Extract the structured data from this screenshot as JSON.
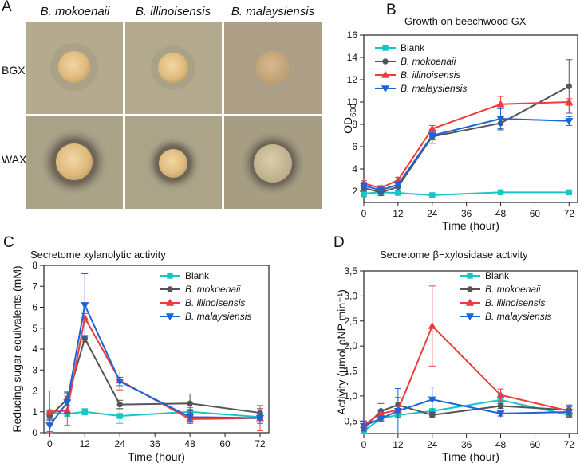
{
  "panels": {
    "A": {
      "letter": "A",
      "columns": [
        "B. mokoenaii",
        "B. illinoisensis",
        "B. malaysiensis"
      ],
      "rows": [
        "BGX",
        "WAX"
      ]
    }
  },
  "colors": {
    "Blank": "#16c6c6",
    "B. mokoenaii": "#555555",
    "B. illinoisensis": "#ef3b3b",
    "B. malaysiensis": "#1f63d9"
  },
  "chart_data": [
    {
      "letter": "B",
      "type": "line",
      "title": "Growth on beechwood GX",
      "xlabel": "Time (hour)",
      "ylabel": "OD",
      "ylabel_sub": "600",
      "x": [
        0,
        6,
        12,
        24,
        48,
        72
      ],
      "xlim": [
        0,
        75
      ],
      "xticks": [
        0,
        12,
        24,
        36,
        48,
        60,
        72
      ],
      "ylim": [
        1,
        16
      ],
      "yticks": [
        2,
        4,
        6,
        8,
        10,
        12,
        14,
        16
      ],
      "ytick_labels": [
        "2",
        "4",
        "6",
        "8",
        "10",
        "12",
        "14",
        "16"
      ],
      "legend_position": "top-left",
      "series": [
        {
          "name": "Blank",
          "marker": "square",
          "values": [
            1.8,
            1.9,
            1.85,
            1.65,
            1.9,
            1.9
          ],
          "err": [
            0.3,
            0.2,
            0.15,
            0.1,
            0.15,
            0.1
          ]
        },
        {
          "name": "B. mokoenaii",
          "marker": "circle",
          "values": [
            2.3,
            1.9,
            2.4,
            6.9,
            8.1,
            11.4
          ],
          "err": [
            0.3,
            0.3,
            0.3,
            0.6,
            0.6,
            2.4
          ]
        },
        {
          "name": "B. illinoisensis",
          "marker": "triangle-up",
          "values": [
            2.7,
            2.3,
            3.0,
            7.6,
            9.8,
            10.0
          ],
          "err": [
            0.25,
            0.2,
            0.25,
            0.3,
            0.7,
            0.3
          ]
        },
        {
          "name": "B. malaysiensis",
          "marker": "triangle-down",
          "values": [
            2.5,
            2.1,
            2.6,
            7.0,
            8.5,
            8.3
          ],
          "err": [
            0.3,
            0.25,
            0.25,
            0.4,
            0.9,
            0.4
          ]
        }
      ]
    },
    {
      "letter": "C",
      "type": "line",
      "title": "Secretome xylanolytic activity",
      "xlabel": "Time (hour)",
      "ylabel": "Reducing sugar equivalents (mM)",
      "x": [
        0,
        6,
        12,
        24,
        48,
        72
      ],
      "xlim": [
        -2,
        75
      ],
      "xticks": [
        0,
        12,
        24,
        36,
        48,
        60,
        72
      ],
      "ylim": [
        0,
        8
      ],
      "yticks": [
        0,
        1,
        2,
        3,
        4,
        5,
        6,
        7,
        8
      ],
      "ytick_labels": [
        "0",
        "1",
        "2",
        "3",
        "4",
        "5",
        "6",
        "7",
        "8"
      ],
      "legend_position": "top-right",
      "series": [
        {
          "name": "Blank",
          "marker": "square",
          "values": [
            0.95,
            0.9,
            1.0,
            0.8,
            1.0,
            0.75
          ],
          "err": [
            0.15,
            0.1,
            0.15,
            0.35,
            0.2,
            0.1
          ]
        },
        {
          "name": "B. mokoenaii",
          "marker": "circle",
          "values": [
            0.8,
            1.6,
            4.5,
            1.35,
            1.4,
            0.95
          ],
          "err": [
            0.2,
            0.3,
            0.15,
            0.2,
            0.45,
            0.2
          ]
        },
        {
          "name": "B. illinoisensis",
          "marker": "triangle-up",
          "values": [
            1.0,
            1.05,
            5.5,
            2.5,
            0.65,
            0.7
          ],
          "err": [
            1.0,
            0.7,
            0.2,
            0.45,
            0.2,
            0.6
          ]
        },
        {
          "name": "B. malaysiensis",
          "marker": "triangle-down",
          "values": [
            0.35,
            1.45,
            6.1,
            2.45,
            0.75,
            0.7
          ],
          "err": [
            0.3,
            0.5,
            1.5,
            0.2,
            0.3,
            0.25
          ]
        }
      ]
    },
    {
      "letter": "D",
      "type": "line",
      "title": "Secretome β−xylosidase activity",
      "xlabel": "Time (hour)",
      "ylabel": "Activity (µmol ρNP min⁻¹)",
      "x": [
        0,
        6,
        12,
        24,
        48,
        72
      ],
      "xlim": [
        0,
        75
      ],
      "xticks": [
        0,
        12,
        24,
        36,
        48,
        60,
        72
      ],
      "ylim": [
        0.25,
        3.5
      ],
      "yticks": [
        0.5,
        1.0,
        1.5,
        2.0,
        2.5,
        3.0,
        3.5
      ],
      "ytick_labels": [
        "0,5",
        "1,0",
        "1,5",
        "2,0",
        "2,5",
        "3,0",
        "3,5"
      ],
      "legend_position": "top-right",
      "series": [
        {
          "name": "Blank",
          "marker": "square",
          "values": [
            0.3,
            0.55,
            0.62,
            0.7,
            0.92,
            0.62
          ],
          "err": [
            0.05,
            0.05,
            0.05,
            0.1,
            0.1,
            0.05
          ]
        },
        {
          "name": "B. mokoenaii",
          "marker": "circle",
          "values": [
            0.35,
            0.7,
            0.82,
            0.62,
            0.8,
            0.72
          ],
          "err": [
            0.05,
            0.15,
            0.15,
            0.05,
            0.05,
            0.1
          ]
        },
        {
          "name": "B. illinoisensis",
          "marker": "triangle-up",
          "values": [
            0.42,
            0.65,
            0.72,
            2.4,
            1.02,
            0.7
          ],
          "err": [
            0.08,
            0.15,
            0.15,
            0.8,
            0.12,
            0.1
          ]
        },
        {
          "name": "B. malaysiensis",
          "marker": "triangle-down",
          "values": [
            0.4,
            0.55,
            0.7,
            0.93,
            0.65,
            0.68
          ],
          "err": [
            0.1,
            0.15,
            0.45,
            0.25,
            0.05,
            0.1
          ]
        }
      ]
    }
  ]
}
